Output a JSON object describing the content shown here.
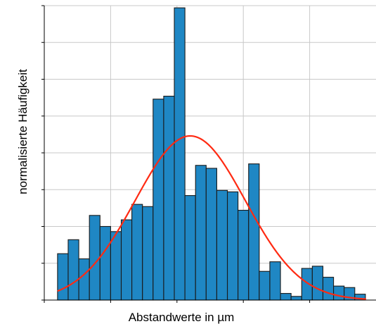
{
  "chart_data": {
    "type": "bar",
    "title": "",
    "xlabel": "Abstandwerte in µm",
    "ylabel": "normalisierte Häufigkeit",
    "grid": true,
    "x_tick_labels_shown": false,
    "y_tick_labels_shown": false,
    "xlim": [
      0,
      50
    ],
    "ylim": [
      0,
      40
    ],
    "bin_width": 1.6,
    "bin_start": 2,
    "values": [
      6.3,
      8.2,
      5.6,
      11.5,
      10.0,
      9.3,
      10.9,
      13.0,
      12.7,
      27.3,
      27.7,
      39.7,
      14.2,
      18.3,
      17.9,
      14.9,
      14.7,
      12.2,
      18.5,
      3.9,
      5.2,
      0.9,
      0.5,
      4.3,
      4.6,
      3.1,
      1.9,
      1.7,
      0.8
    ],
    "fit_curve": {
      "type": "normal",
      "mu": 22.0,
      "sigma": 8.3,
      "peak": 22.3
    },
    "colors": {
      "bar_fill": "#1f87c4",
      "bar_edge": "#1a1a1a",
      "fit_line": "#ff2a12",
      "grid": "#c8c8c8",
      "axis": "#000000"
    }
  }
}
